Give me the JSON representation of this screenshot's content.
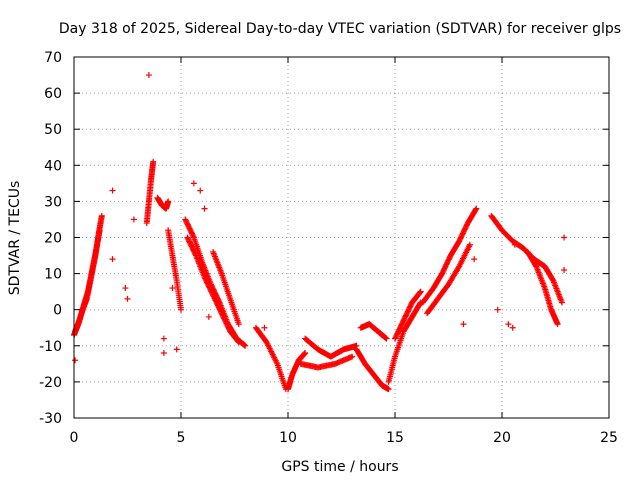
{
  "chart_data": {
    "type": "scatter",
    "title": "Day 318 of 2025, Sidereal Day-to-day VTEC variation (SDTVAR) for receiver glps",
    "xlabel": "GPS time / hours",
    "ylabel": "SDTVAR / TECUs",
    "xlim": [
      0,
      25
    ],
    "ylim": [
      -30,
      70
    ],
    "xticks": [
      0,
      5,
      10,
      15,
      20,
      25
    ],
    "yticks": [
      -30,
      -20,
      -10,
      0,
      10,
      20,
      30,
      40,
      50,
      60,
      70
    ],
    "grid": true,
    "marker": "+",
    "color": "#ff0000",
    "series": [
      {
        "name": "SDTVAR",
        "segments": [
          [
            [
              0.0,
              -7
            ],
            [
              0.2,
              -4
            ],
            [
              0.4,
              0
            ],
            [
              0.6,
              3
            ],
            [
              0.8,
              9
            ],
            [
              1.0,
              15
            ],
            [
              1.15,
              21
            ],
            [
              1.3,
              26
            ]
          ],
          [
            [
              0.05,
              -6
            ],
            [
              0.25,
              -3
            ],
            [
              0.45,
              1
            ],
            [
              0.65,
              5
            ],
            [
              0.85,
              11
            ],
            [
              1.05,
              17
            ],
            [
              1.2,
              22
            ]
          ],
          [
            [
              3.4,
              24
            ],
            [
              3.5,
              30
            ],
            [
              3.6,
              36
            ],
            [
              3.7,
              41
            ]
          ],
          [
            [
              3.9,
              31
            ],
            [
              4.1,
              29
            ],
            [
              4.3,
              28
            ],
            [
              4.4,
              30
            ]
          ],
          [
            [
              4.4,
              22
            ],
            [
              4.6,
              15
            ],
            [
              4.8,
              8
            ],
            [
              5.0,
              0
            ]
          ],
          [
            [
              5.2,
              25
            ],
            [
              5.6,
              20
            ],
            [
              6.0,
              13
            ],
            [
              6.4,
              7
            ],
            [
              6.8,
              2
            ],
            [
              7.2,
              -4
            ],
            [
              7.6,
              -8
            ],
            [
              8.0,
              -10
            ]
          ],
          [
            [
              5.3,
              20
            ],
            [
              5.7,
              15
            ],
            [
              6.1,
              9
            ],
            [
              6.5,
              4
            ],
            [
              6.9,
              -1
            ],
            [
              7.3,
              -6
            ],
            [
              7.7,
              -9
            ]
          ],
          [
            [
              6.5,
              16
            ],
            [
              6.9,
              10
            ],
            [
              7.3,
              3
            ],
            [
              7.7,
              -4
            ]
          ],
          [
            [
              8.5,
              -5
            ],
            [
              9.0,
              -9
            ],
            [
              9.5,
              -15
            ],
            [
              9.9,
              -22
            ]
          ],
          [
            [
              10.0,
              -22
            ],
            [
              10.2,
              -18
            ],
            [
              10.5,
              -14
            ],
            [
              10.8,
              -12
            ]
          ],
          [
            [
              10.8,
              -8
            ],
            [
              11.4,
              -11
            ],
            [
              12.0,
              -13
            ],
            [
              12.6,
              -11
            ],
            [
              13.2,
              -10
            ]
          ],
          [
            [
              10.6,
              -15
            ],
            [
              11.4,
              -16
            ],
            [
              12.2,
              -15
            ],
            [
              13.0,
              -13
            ]
          ],
          [
            [
              13.2,
              -11
            ],
            [
              13.6,
              -15
            ],
            [
              14.0,
              -18
            ],
            [
              14.4,
              -21
            ],
            [
              14.7,
              -22
            ]
          ],
          [
            [
              13.4,
              -5
            ],
            [
              13.8,
              -4
            ],
            [
              14.2,
              -6
            ],
            [
              14.6,
              -8
            ]
          ],
          [
            [
              14.7,
              -20
            ],
            [
              15.0,
              -13
            ],
            [
              15.4,
              -6
            ],
            [
              15.8,
              -2
            ],
            [
              16.2,
              2
            ]
          ],
          [
            [
              15.0,
              -8
            ],
            [
              15.4,
              -3
            ],
            [
              15.8,
              2
            ],
            [
              16.2,
              5
            ]
          ],
          [
            [
              16.3,
              2
            ],
            [
              16.8,
              6
            ],
            [
              17.2,
              10
            ],
            [
              17.6,
              15
            ],
            [
              18.0,
              19
            ],
            [
              18.4,
              24
            ],
            [
              18.8,
              28
            ]
          ],
          [
            [
              16.5,
              -1
            ],
            [
              17.0,
              3
            ],
            [
              17.5,
              7
            ],
            [
              18.0,
              12
            ],
            [
              18.5,
              18
            ]
          ],
          [
            [
              19.5,
              26
            ],
            [
              20.0,
              22
            ],
            [
              20.5,
              19
            ],
            [
              21.0,
              17
            ],
            [
              21.5,
              14
            ],
            [
              22.0,
              12
            ],
            [
              22.4,
              8
            ],
            [
              22.8,
              2
            ]
          ],
          [
            [
              21.2,
              16
            ],
            [
              21.6,
              12
            ],
            [
              22.0,
              6
            ],
            [
              22.3,
              0
            ],
            [
              22.6,
              -4
            ]
          ]
        ],
        "scatter": [
          [
            0.05,
            -14
          ],
          [
            1.8,
            33
          ],
          [
            1.8,
            14
          ],
          [
            2.4,
            6
          ],
          [
            2.5,
            3
          ],
          [
            2.8,
            25
          ],
          [
            3.5,
            65
          ],
          [
            4.2,
            -8
          ],
          [
            4.2,
            -12
          ],
          [
            4.6,
            6
          ],
          [
            4.8,
            -11
          ],
          [
            5.6,
            35
          ],
          [
            5.9,
            33
          ],
          [
            6.1,
            28
          ],
          [
            6.3,
            -2
          ],
          [
            8.9,
            -5
          ],
          [
            11.2,
            -10
          ],
          [
            18.2,
            -4
          ],
          [
            18.7,
            14
          ],
          [
            19.8,
            0
          ],
          [
            20.3,
            -4
          ],
          [
            20.5,
            -5
          ],
          [
            20.6,
            18
          ],
          [
            22.9,
            20
          ],
          [
            22.9,
            11
          ]
        ]
      }
    ]
  }
}
